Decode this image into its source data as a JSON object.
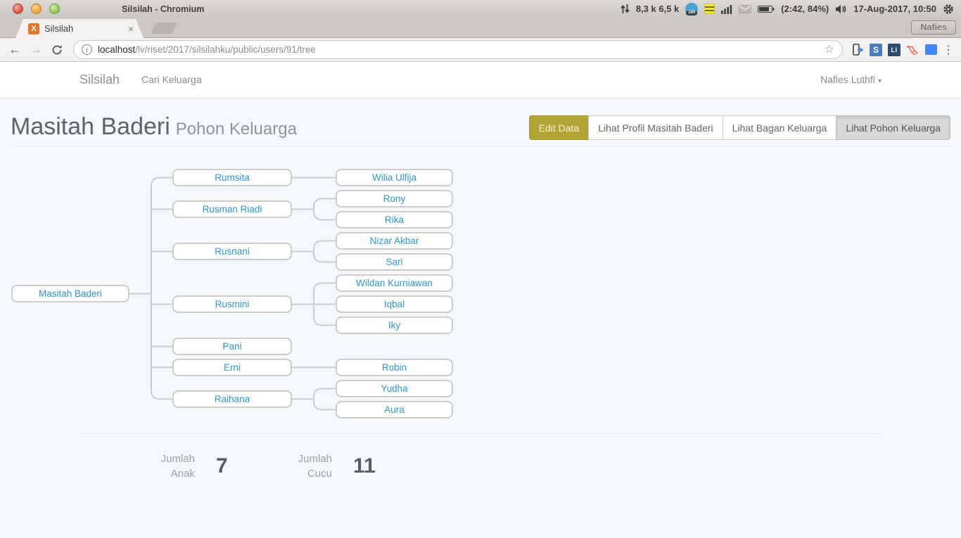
{
  "system_bar": {
    "title": "Silsilah - Chromium",
    "tray": {
      "net_speed": "8,3 k 6,5 k",
      "badge_count": "289",
      "battery_text": "(2:42, 84%)",
      "datetime": "17-Aug-2017, 10:50",
      "icons": [
        "network-updown-icon",
        "sync-badge-icon",
        "notes-icon",
        "signal-bars-icon",
        "mail-icon",
        "battery-icon",
        "volume-icon",
        "gear-icon"
      ]
    }
  },
  "browser": {
    "tab_title": "Silsilah",
    "tab_close": "×",
    "favicon_letter": "X",
    "profile_label": "Nafies",
    "url_host": "localhost",
    "url_path": "/lv/riset/2017/silsilahku/public/users/91/tree",
    "ext_s_label": "S",
    "ext_li_label": "LI",
    "extension_icons": [
      "send-to-phone-icon",
      "s-extension-icon",
      "li-extension-icon",
      "laravel-extension-icon",
      "blue-extension-icon"
    ]
  },
  "navbar": {
    "brand": "Silsilah",
    "link_cari": "Cari Keluarga",
    "user": "Nafies Luthfi"
  },
  "page": {
    "title": "Masitah Baderi",
    "subtitle": "Pohon Keluarga",
    "actions": [
      {
        "label": "Edit Data",
        "variant": "warning"
      },
      {
        "label": "Lihat Profil Masitah Baderi",
        "variant": "default"
      },
      {
        "label": "Lihat Bagan Keluarga",
        "variant": "default"
      },
      {
        "label": "Lihat Pohon Keluarga",
        "variant": "active"
      }
    ]
  },
  "tree": {
    "root": "Masitah Baderi",
    "children": [
      {
        "name": "Rumsita",
        "children": [
          "Wilia Ulfija"
        ]
      },
      {
        "name": "Rusman Riadi",
        "children": [
          "Rony",
          "Rika"
        ]
      },
      {
        "name": "Rusnani",
        "children": [
          "Nizar Akbar",
          "Sari"
        ]
      },
      {
        "name": "Rusmini",
        "children": [
          "Wildan Kurniawan",
          "Iqbal",
          "Iky"
        ]
      },
      {
        "name": "Pani",
        "children": []
      },
      {
        "name": "Erni",
        "children": [
          "Robin"
        ]
      },
      {
        "name": "Raihana",
        "children": [
          "Yudha",
          "Aura"
        ]
      }
    ]
  },
  "stats": {
    "anak_label1": "Jumlah",
    "anak_label2": "Anak",
    "anak_value": "7",
    "cucu_label1": "Jumlah",
    "cucu_label2": "Cucu",
    "cucu_value": "11"
  },
  "colors": {
    "link_blue": "#3097d1",
    "page_bg": "#f5f8fa",
    "edit_button": "#b3a234",
    "connector": "#cccccc"
  }
}
